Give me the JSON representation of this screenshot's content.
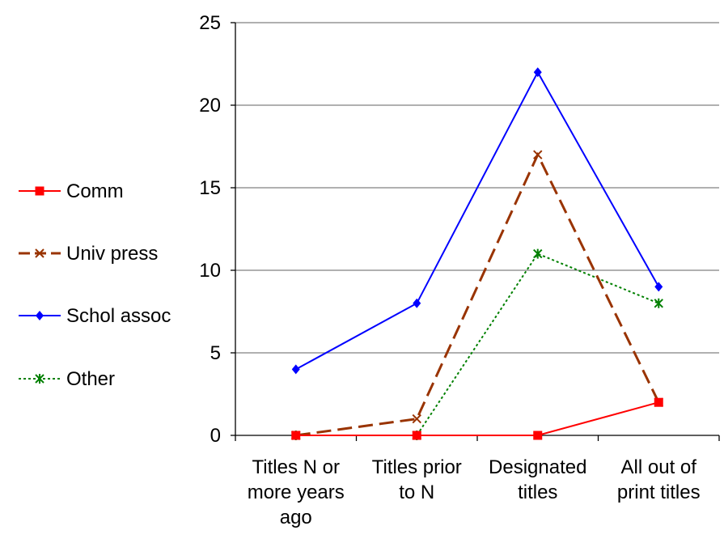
{
  "chart_data": {
    "type": "line",
    "title": "",
    "xlabel": "",
    "ylabel": "",
    "categories": [
      [
        "Titles N or",
        "more years",
        "ago"
      ],
      [
        "Titles prior",
        "to N"
      ],
      [
        "Designated",
        "titles"
      ],
      [
        "All out of",
        "print titles"
      ]
    ],
    "ylim": [
      0,
      25
    ],
    "yticks": [
      0,
      5,
      10,
      15,
      20,
      25
    ],
    "grid": true,
    "legend_position": "left",
    "series": [
      {
        "name": "Comm",
        "color": "#ff0000",
        "marker": "square",
        "line_style": "solid",
        "values": [
          0,
          0,
          0,
          2
        ]
      },
      {
        "name": "Univ press",
        "color": "#993300",
        "marker": "x",
        "line_style": "long-dash",
        "values": [
          0,
          1,
          17,
          2
        ]
      },
      {
        "name": "Schol assoc",
        "color": "#0000ff",
        "marker": "diamond",
        "line_style": "solid",
        "values": [
          4,
          8,
          22,
          9
        ]
      },
      {
        "name": "Other",
        "color": "#008000",
        "marker": "asterisk",
        "line_style": "dotted",
        "values": [
          0,
          0,
          11,
          8
        ]
      }
    ]
  }
}
